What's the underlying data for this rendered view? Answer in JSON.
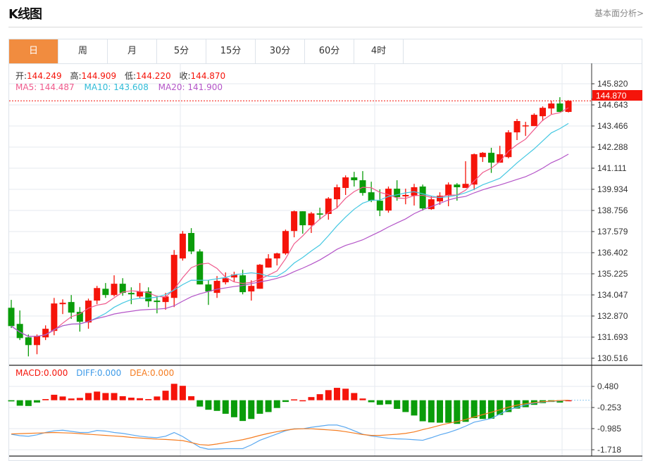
{
  "header": {
    "title": "K线图",
    "fundamental_link": "基本面分析>"
  },
  "tabs": [
    {
      "label": "日",
      "active": true
    },
    {
      "label": "周"
    },
    {
      "label": "月"
    },
    {
      "label": "5分"
    },
    {
      "label": "15分"
    },
    {
      "label": "30分"
    },
    {
      "label": "60分"
    },
    {
      "label": "4时"
    }
  ],
  "info": {
    "open_label": "开:",
    "open": "144.249",
    "high_label": "高:",
    "high": "144.909",
    "low_label": "低:",
    "low": "144.220",
    "close_label": "收:",
    "close": "144.870",
    "ma5": "MA5: 144.487",
    "ma10": "MA10: 143.608",
    "ma20": "MA20: 141.900",
    "macd": "MACD:0.000",
    "diff": "DIFF:0.000",
    "dea": "DEA:0.000"
  },
  "colors": {
    "up": "#f5140a",
    "down": "#0a9c0a",
    "ma5": "#ef5a8c",
    "ma10": "#45c8e2",
    "ma20": "#b455c8",
    "diff": "#5aa8f0",
    "dea": "#f57c20",
    "accent": "#f18c3f"
  },
  "chart_data": {
    "type": "candlestick",
    "price_axis": {
      "ticks": [
        "145.820",
        "144.643",
        "143.466",
        "142.288",
        "141.111",
        "139.934",
        "138.756",
        "137.579",
        "136.402",
        "135.225",
        "134.047",
        "132.870",
        "131.693",
        "130.516"
      ],
      "ylim": [
        130.516,
        145.82
      ]
    },
    "last_price": "144.870",
    "ohlc": [
      [
        133.33,
        133.77,
        132.2,
        132.31
      ],
      [
        132.43,
        133.18,
        131.53,
        131.64
      ],
      [
        131.68,
        131.84,
        130.62,
        131.25
      ],
      [
        131.25,
        131.84,
        130.74,
        131.76
      ],
      [
        131.68,
        132.35,
        131.53,
        132.16
      ],
      [
        132.04,
        133.88,
        131.8,
        133.57
      ],
      [
        133.53,
        133.8,
        132.98,
        133.61
      ],
      [
        133.65,
        134.04,
        132.71,
        133.06
      ],
      [
        133.1,
        133.37,
        132.0,
        132.55
      ],
      [
        132.51,
        133.84,
        132.16,
        133.73
      ],
      [
        133.73,
        134.55,
        133.53,
        134.43
      ],
      [
        134.39,
        134.71,
        133.88,
        134.04
      ],
      [
        134.04,
        135.14,
        133.96,
        134.67
      ],
      [
        134.67,
        134.98,
        134.0,
        134.16
      ],
      [
        134.16,
        134.47,
        133.53,
        134.08
      ],
      [
        133.96,
        134.71,
        133.84,
        134.24
      ],
      [
        134.24,
        134.47,
        133.37,
        133.69
      ],
      [
        133.73,
        134.0,
        133.02,
        133.65
      ],
      [
        133.65,
        134.16,
        133.22,
        133.96
      ],
      [
        133.88,
        136.55,
        133.37,
        136.28
      ],
      [
        136.08,
        137.61,
        135.96,
        137.46
      ],
      [
        137.5,
        137.77,
        136.32,
        136.47
      ],
      [
        136.47,
        136.59,
        134.63,
        134.63
      ],
      [
        134.63,
        134.86,
        133.49,
        134.24
      ],
      [
        134.16,
        135.1,
        133.88,
        134.83
      ],
      [
        134.75,
        135.3,
        134.63,
        134.98
      ],
      [
        135.02,
        135.34,
        134.79,
        135.18
      ],
      [
        135.14,
        135.45,
        134.08,
        134.2
      ],
      [
        134.24,
        134.86,
        133.73,
        134.55
      ],
      [
        134.39,
        135.77,
        134.39,
        135.73
      ],
      [
        135.57,
        136.32,
        135.57,
        136.08
      ],
      [
        136.08,
        136.4,
        135.69,
        136.36
      ],
      [
        136.36,
        137.69,
        136.28,
        137.61
      ],
      [
        137.61,
        138.75,
        137.26,
        138.71
      ],
      [
        138.71,
        138.71,
        137.46,
        137.93
      ],
      [
        137.93,
        138.67,
        137.5,
        138.59
      ],
      [
        138.59,
        138.91,
        138.24,
        138.52
      ],
      [
        138.56,
        139.5,
        138.24,
        139.42
      ],
      [
        139.38,
        140.2,
        138.87,
        140.05
      ],
      [
        140.01,
        140.71,
        139.62,
        140.6
      ],
      [
        140.6,
        140.91,
        140.09,
        140.44
      ],
      [
        140.44,
        140.95,
        139.58,
        139.73
      ],
      [
        139.77,
        140.36,
        139.22,
        139.3
      ],
      [
        139.3,
        139.93,
        138.44,
        138.75
      ],
      [
        138.75,
        140.09,
        138.63,
        139.97
      ],
      [
        139.97,
        140.44,
        139.3,
        139.5
      ],
      [
        139.54,
        139.97,
        139.1,
        139.62
      ],
      [
        139.58,
        140.24,
        139.03,
        140.05
      ],
      [
        140.09,
        140.2,
        138.75,
        138.87
      ],
      [
        138.83,
        139.58,
        138.79,
        139.38
      ],
      [
        139.26,
        139.77,
        139.07,
        139.58
      ],
      [
        139.58,
        140.32,
        138.99,
        140.2
      ],
      [
        140.2,
        140.28,
        139.3,
        140.05
      ],
      [
        140.01,
        141.5,
        140.01,
        140.24
      ],
      [
        140.2,
        141.93,
        139.89,
        141.89
      ],
      [
        141.73,
        142.01,
        141.46,
        141.97
      ],
      [
        141.97,
        142.25,
        140.85,
        141.42
      ],
      [
        141.42,
        142.36,
        141.42,
        141.89
      ],
      [
        141.73,
        143.23,
        141.66,
        143.11
      ],
      [
        143.11,
        143.86,
        142.68,
        143.74
      ],
      [
        143.46,
        143.7,
        142.91,
        143.5
      ],
      [
        143.46,
        144.17,
        143.46,
        144.09
      ],
      [
        144.01,
        144.56,
        143.74,
        144.48
      ],
      [
        144.44,
        144.88,
        144.13,
        144.72
      ],
      [
        144.72,
        145.07,
        144.25,
        144.25
      ],
      [
        144.249,
        144.909,
        144.22,
        144.87
      ]
    ],
    "macd_axis": {
      "ticks": [
        "0.480",
        "-0.253",
        "-0.985",
        "-1.718"
      ],
      "ylim": [
        -1.718,
        0.48
      ]
    },
    "macd_hist": [
      -0.04,
      -0.19,
      -0.2,
      -0.08,
      0.04,
      0.19,
      0.13,
      0.06,
      0.08,
      0.25,
      0.3,
      0.25,
      0.25,
      0.14,
      0.09,
      0.07,
      0.04,
      0.13,
      0.33,
      0.57,
      0.5,
      0.14,
      -0.22,
      -0.33,
      -0.37,
      -0.47,
      -0.59,
      -0.72,
      -0.65,
      -0.47,
      -0.41,
      -0.27,
      -0.06,
      0.03,
      0.0,
      0.11,
      0.21,
      0.35,
      0.43,
      0.4,
      0.25,
      0.06,
      -0.07,
      -0.16,
      -0.14,
      -0.3,
      -0.41,
      -0.53,
      -0.73,
      -0.77,
      -0.78,
      -0.78,
      -0.82,
      -0.75,
      -0.62,
      -0.65,
      -0.64,
      -0.51,
      -0.41,
      -0.29,
      -0.24,
      -0.16,
      -0.1,
      -0.06,
      -0.08,
      0.0
    ],
    "diff": [
      -1.18,
      -1.23,
      -1.25,
      -1.2,
      -1.12,
      -1.06,
      -1.04,
      -1.08,
      -1.12,
      -1.12,
      -1.05,
      -1.07,
      -1.12,
      -1.15,
      -1.2,
      -1.25,
      -1.28,
      -1.3,
      -1.25,
      -1.12,
      -1.26,
      -1.45,
      -1.63,
      -1.7,
      -1.69,
      -1.68,
      -1.68,
      -1.68,
      -1.55,
      -1.39,
      -1.28,
      -1.17,
      -1.06,
      -0.99,
      -0.99,
      -0.94,
      -0.9,
      -0.86,
      -0.86,
      -0.94,
      -1.06,
      -1.18,
      -1.24,
      -1.28,
      -1.32,
      -1.34,
      -1.35,
      -1.37,
      -1.39,
      -1.3,
      -1.2,
      -1.12,
      -1.02,
      -0.9,
      -0.76,
      -0.7,
      -0.63,
      -0.48,
      -0.33,
      -0.25,
      -0.16,
      -0.1,
      -0.06,
      -0.04,
      -0.02,
      0.0
    ],
    "dea": [
      -1.17,
      -1.16,
      -1.15,
      -1.14,
      -1.13,
      -1.12,
      -1.13,
      -1.14,
      -1.16,
      -1.18,
      -1.2,
      -1.22,
      -1.24,
      -1.26,
      -1.29,
      -1.31,
      -1.33,
      -1.35,
      -1.36,
      -1.38,
      -1.4,
      -1.47,
      -1.54,
      -1.56,
      -1.52,
      -1.47,
      -1.42,
      -1.37,
      -1.3,
      -1.22,
      -1.15,
      -1.09,
      -1.04,
      -1.0,
      -0.99,
      -0.99,
      -1.01,
      -1.03,
      -1.05,
      -1.09,
      -1.14,
      -1.19,
      -1.22,
      -1.22,
      -1.2,
      -1.18,
      -1.15,
      -1.1,
      -1.02,
      -0.95,
      -0.87,
      -0.8,
      -0.74,
      -0.67,
      -0.58,
      -0.5,
      -0.42,
      -0.33,
      -0.24,
      -0.17,
      -0.12,
      -0.08,
      -0.05,
      -0.03,
      -0.01,
      0.0
    ]
  }
}
